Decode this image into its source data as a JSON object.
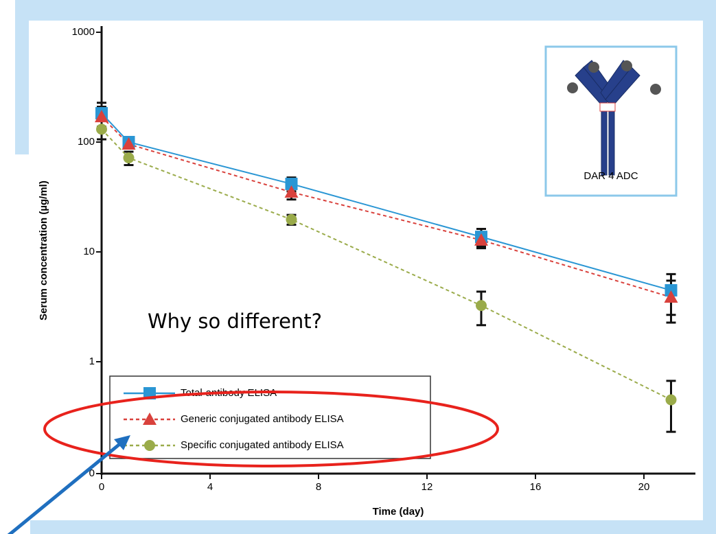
{
  "chart_data": {
    "type": "line",
    "x_label": "Time (day)",
    "y_label": "Serum concentration (µg/ml)",
    "annotation": "Why so different?",
    "inset_label": "DAR 4 ADC",
    "log_scale": "y",
    "x": [
      0,
      1,
      7,
      14,
      21
    ],
    "xlim": [
      0,
      22
    ],
    "xticks": [
      0,
      4,
      8,
      12,
      16,
      20
    ],
    "ylim": [
      0.1,
      1000
    ],
    "yticks": [
      {
        "value": 0.1,
        "label": "0"
      },
      1,
      10,
      100,
      1000
    ],
    "series": [
      {
        "name": "Total-antibody ELISA",
        "color": "#2a96d4",
        "marker": "square",
        "dash": "solid",
        "values": [
          183,
          100,
          41.6,
          13.7,
          4.47
        ],
        "errors": [
          45,
          10,
          6,
          2.5,
          1.8
        ]
      },
      {
        "name": "Generic conjugated antibody ELISA",
        "color": "#d9413c",
        "marker": "triangle",
        "dash": "dashed",
        "values": [
          170,
          95.7,
          35,
          12.8,
          3.87
        ],
        "errors": [
          40,
          8,
          5,
          2,
          1.6
        ]
      },
      {
        "name": "Specific conjugated antibody ELISA",
        "color": "#9aab4a",
        "marker": "circle",
        "dash": "dashed",
        "values": [
          131,
          71.8,
          19.7,
          3.25,
          0.45
        ],
        "errors": [
          25,
          10,
          2,
          1.1,
          0.22
        ]
      }
    ]
  }
}
